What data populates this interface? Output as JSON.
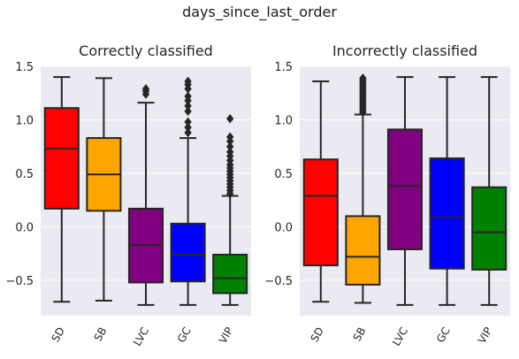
{
  "suptitle": "days_since_last_order",
  "chart_data": [
    {
      "type": "box",
      "title": "Correctly classified",
      "xlabel": "",
      "ylabel": "",
      "categories": [
        "SD",
        "SB",
        "LVC",
        "GC",
        "VIP"
      ],
      "colors": [
        "#ff0000",
        "#ffa500",
        "#800080",
        "#0000ff",
        "#008000"
      ],
      "ylim": [
        -0.83,
        1.5
      ],
      "yticks": [
        -0.5,
        0.0,
        0.5,
        1.0,
        1.5
      ],
      "ytick_labels": [
        "−0.5",
        "0.0",
        "0.5",
        "1.0",
        "1.5"
      ],
      "boxes": [
        {
          "whislo": -0.7,
          "q1": 0.17,
          "med": 0.73,
          "q3": 1.11,
          "whishi": 1.4,
          "fliers": []
        },
        {
          "whislo": -0.69,
          "q1": 0.15,
          "med": 0.49,
          "q3": 0.83,
          "whishi": 1.39,
          "fliers": []
        },
        {
          "whislo": -0.73,
          "q1": -0.52,
          "med": -0.17,
          "q3": 0.17,
          "whishi": 1.16,
          "fliers": [
            1.24,
            1.27,
            1.29
          ]
        },
        {
          "whislo": -0.73,
          "q1": -0.51,
          "med": -0.26,
          "q3": 0.03,
          "whishi": 0.83,
          "fliers": [
            0.88,
            0.93,
            0.98,
            1.08,
            1.13,
            1.18,
            1.22,
            1.29,
            1.33,
            1.36
          ]
        },
        {
          "whislo": -0.73,
          "q1": -0.62,
          "med": -0.48,
          "q3": -0.26,
          "whishi": 0.29,
          "fliers": [
            0.31,
            0.34,
            0.37,
            0.4,
            0.43,
            0.46,
            0.49,
            0.52,
            0.55,
            0.58,
            0.62,
            0.66,
            0.7,
            0.75,
            0.8,
            0.84,
            1.01
          ]
        }
      ]
    },
    {
      "type": "box",
      "title": "Incorrectly classified",
      "xlabel": "",
      "ylabel": "",
      "categories": [
        "SD",
        "SB",
        "LVC",
        "GC",
        "VIP"
      ],
      "colors": [
        "#ff0000",
        "#ffa500",
        "#800080",
        "#0000ff",
        "#008000"
      ],
      "ylim": [
        -0.83,
        1.5
      ],
      "yticks": [
        -0.5,
        0.0,
        0.5,
        1.0,
        1.5
      ],
      "ytick_labels": [
        "−0.5",
        "0.0",
        "0.5",
        "1.0",
        "1.5"
      ],
      "boxes": [
        {
          "whislo": -0.7,
          "q1": -0.36,
          "med": 0.29,
          "q3": 0.63,
          "whishi": 1.36,
          "fliers": []
        },
        {
          "whislo": -0.71,
          "q1": -0.54,
          "med": -0.28,
          "q3": 0.1,
          "whishi": 1.05,
          "fliers": [
            1.07,
            1.09,
            1.11,
            1.13,
            1.15,
            1.17,
            1.19,
            1.21,
            1.23,
            1.25,
            1.27,
            1.29,
            1.31,
            1.33,
            1.35,
            1.37,
            1.39
          ]
        },
        {
          "whislo": -0.73,
          "q1": -0.21,
          "med": 0.38,
          "q3": 0.91,
          "whishi": 1.4,
          "fliers": []
        },
        {
          "whislo": -0.73,
          "q1": -0.39,
          "med": 0.09,
          "q3": 0.64,
          "whishi": 1.4,
          "fliers": []
        },
        {
          "whislo": -0.73,
          "q1": -0.4,
          "med": -0.05,
          "q3": 0.37,
          "whishi": 1.4,
          "fliers": []
        }
      ]
    }
  ]
}
